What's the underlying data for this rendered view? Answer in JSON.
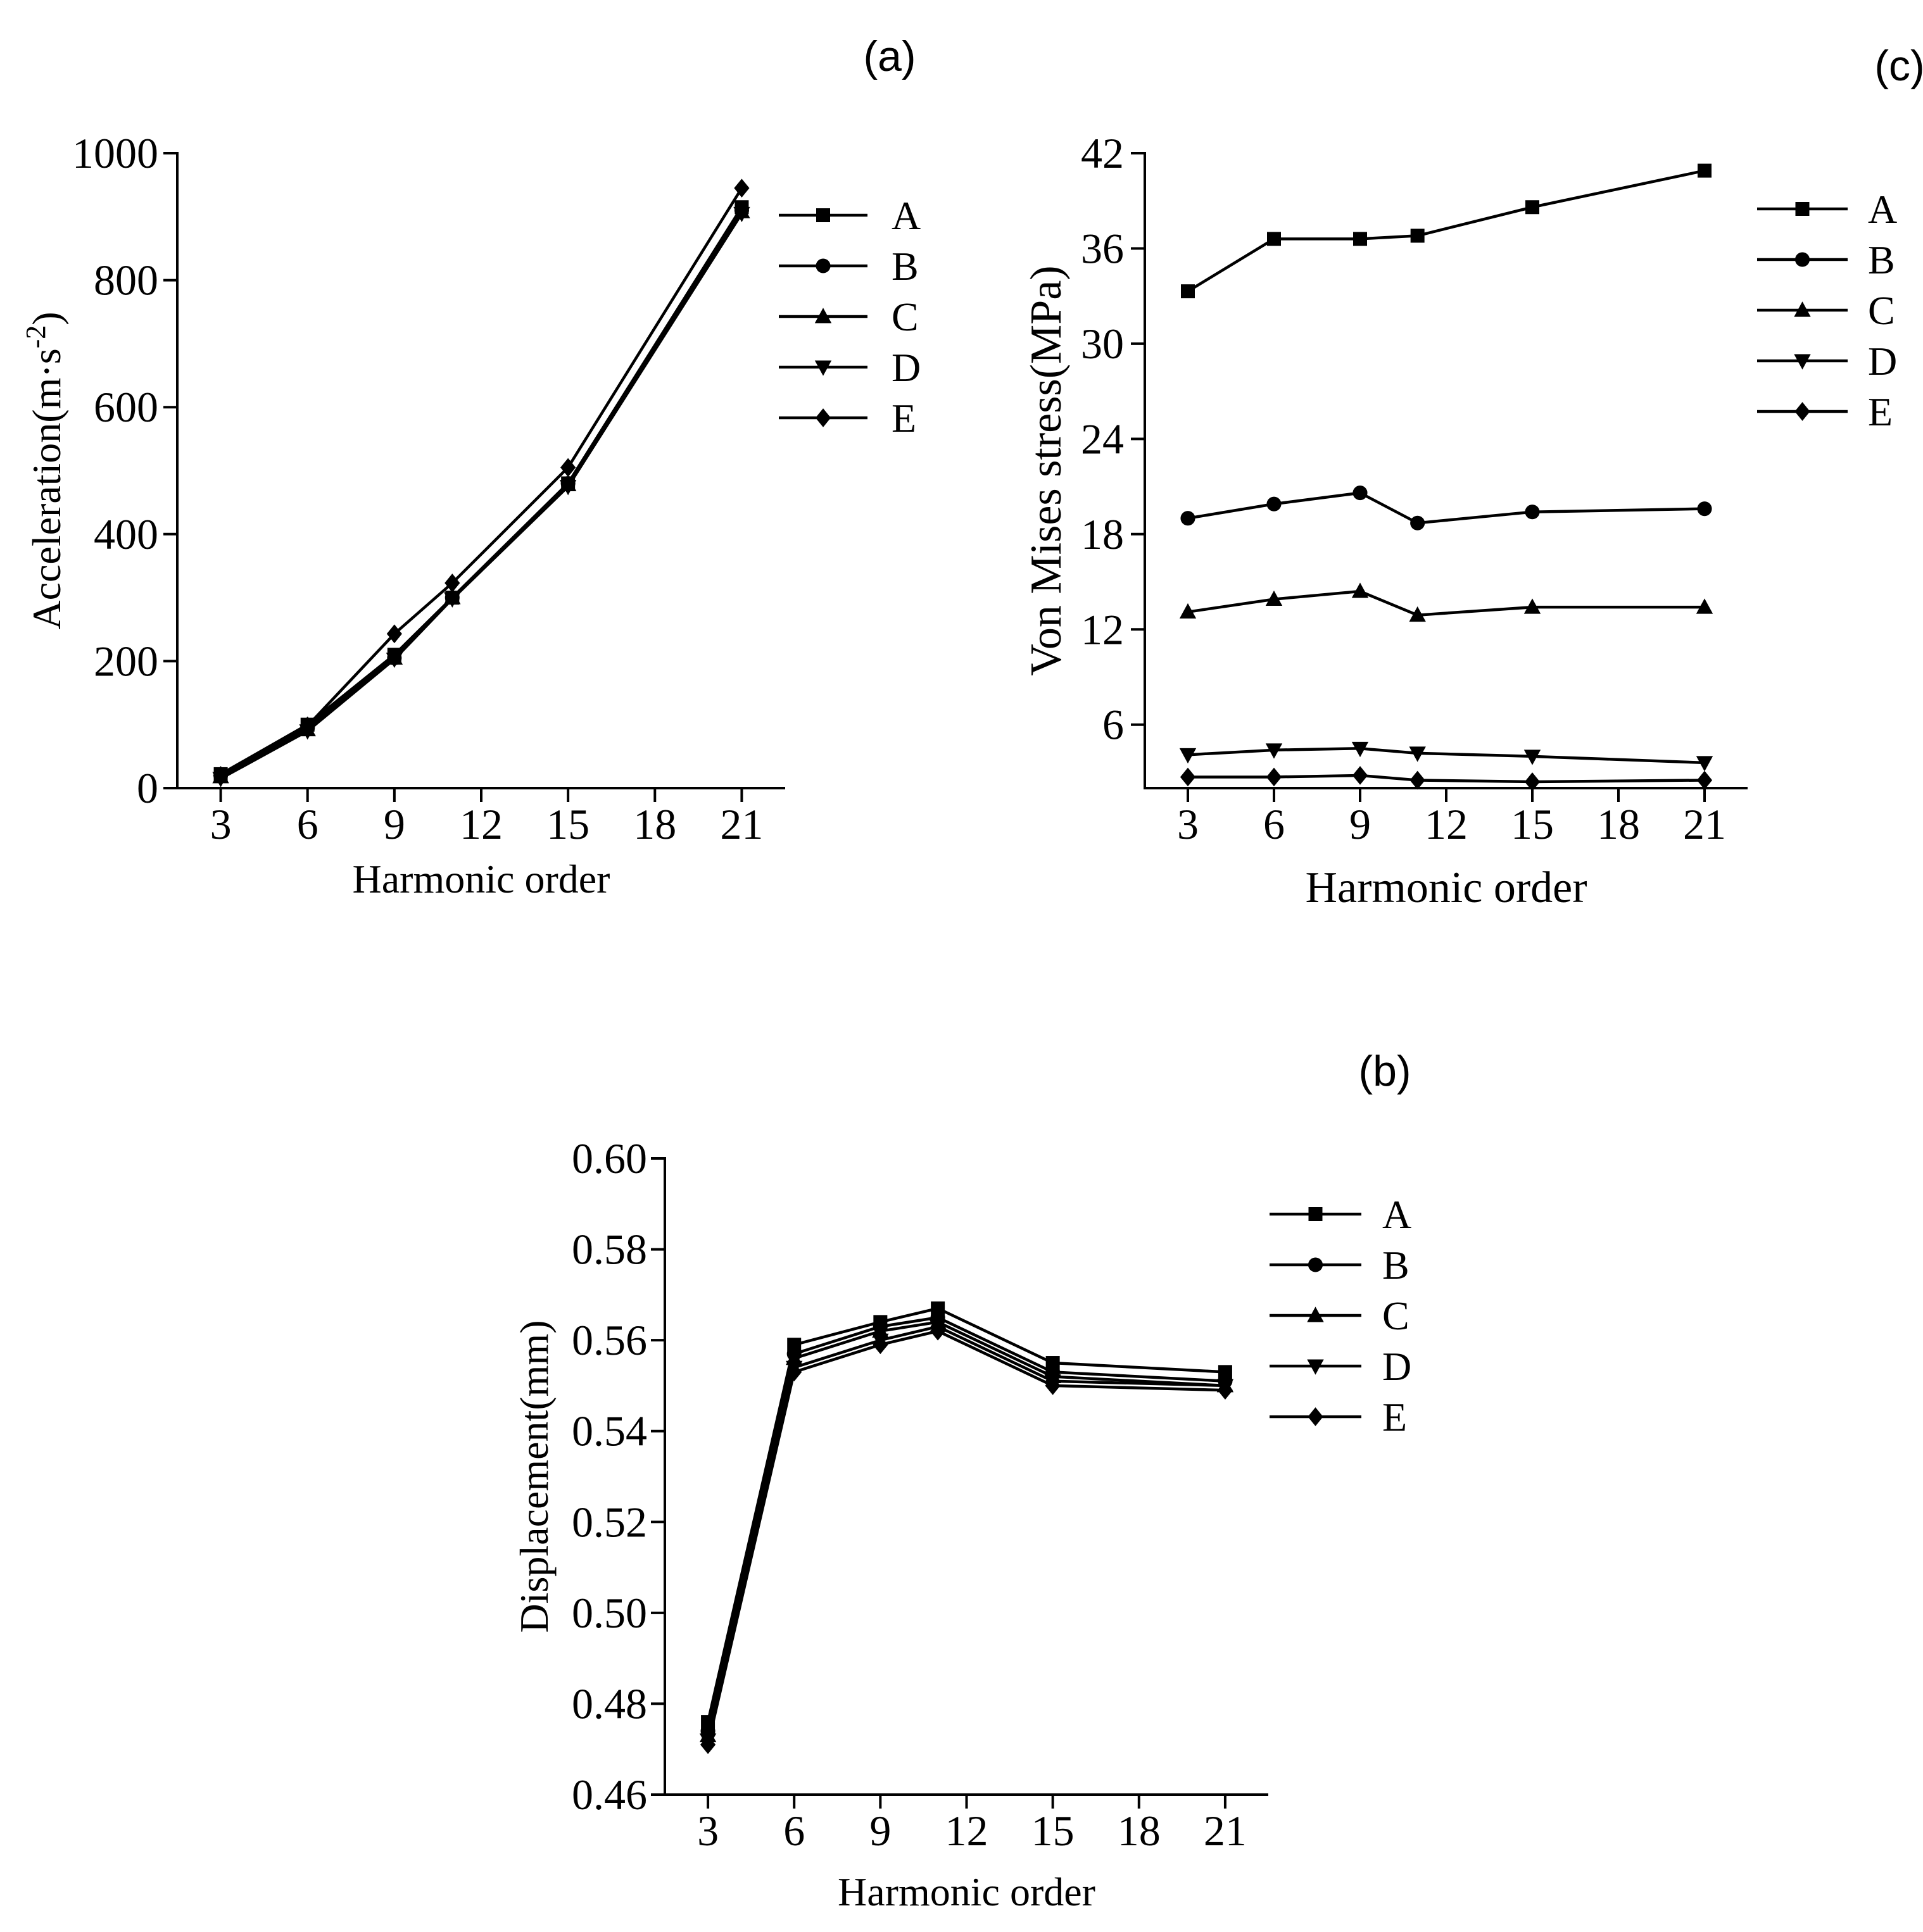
{
  "chart_data": [
    {
      "type": "line",
      "panel_label": "(a)",
      "title": "",
      "xlabel": "Harmonic order",
      "ylabel": "Acceleration(m·s",
      "ylabel_sup": "-2",
      "ylabel_close": ")",
      "xlim": [
        1.5,
        22.5
      ],
      "ylim": [
        0,
        1000
      ],
      "xticks": [
        3,
        6,
        9,
        12,
        15,
        18,
        21
      ],
      "yticks": [
        0,
        200,
        400,
        600,
        800,
        1000
      ],
      "grid": false,
      "legend": "top-right",
      "x": [
        3,
        6,
        9,
        11,
        15,
        21
      ],
      "series": [
        {
          "name": "A",
          "marker": "square",
          "values": [
            22,
            100,
            210,
            300,
            480,
            915
          ]
        },
        {
          "name": "B",
          "marker": "circle",
          "values": [
            20,
            95,
            205,
            300,
            480,
            910
          ]
        },
        {
          "name": "C",
          "marker": "triangle-up",
          "values": [
            18,
            92,
            205,
            300,
            478,
            908
          ]
        },
        {
          "name": "D",
          "marker": "triangle-down",
          "values": [
            15,
            90,
            203,
            298,
            475,
            905
          ]
        },
        {
          "name": "E",
          "marker": "diamond",
          "values": [
            20,
            98,
            243,
            323,
            505,
            945
          ]
        }
      ]
    },
    {
      "type": "line",
      "panel_label": "(c)",
      "title": "",
      "xlabel": "Harmonic order",
      "ylabel": "Von Mises stress(MPa)",
      "xlim": [
        1.5,
        22.5
      ],
      "ylim": [
        2,
        42
      ],
      "xticks": [
        3,
        6,
        9,
        12,
        15,
        18,
        21
      ],
      "yticks": [
        6,
        12,
        18,
        24,
        30,
        36,
        42
      ],
      "grid": false,
      "legend": "top-right",
      "x": [
        3,
        6,
        9,
        11,
        15,
        21
      ],
      "series": [
        {
          "name": "A",
          "marker": "square",
          "values": [
            33.3,
            36.6,
            36.6,
            36.8,
            38.6,
            40.9
          ]
        },
        {
          "name": "B",
          "marker": "circle",
          "values": [
            19.0,
            19.9,
            20.6,
            18.7,
            19.4,
            19.6
          ]
        },
        {
          "name": "C",
          "marker": "triangle-up",
          "values": [
            13.1,
            13.9,
            14.4,
            12.9,
            13.4,
            13.4
          ]
        },
        {
          "name": "D",
          "marker": "triangle-down",
          "values": [
            4.1,
            4.4,
            4.5,
            4.2,
            4.0,
            3.6
          ]
        },
        {
          "name": "E",
          "marker": "diamond",
          "values": [
            2.7,
            2.7,
            2.8,
            2.5,
            2.4,
            2.5
          ]
        }
      ]
    },
    {
      "type": "line",
      "panel_label": "(b)",
      "title": "",
      "xlabel": "Harmonic order",
      "ylabel": "Displacement(mm)",
      "xlim": [
        1.5,
        22.5
      ],
      "ylim": [
        0.46,
        0.6
      ],
      "xticks": [
        3,
        6,
        9,
        12,
        15,
        18,
        21
      ],
      "yticks": [
        0.46,
        0.48,
        0.5,
        0.52,
        0.54,
        0.56,
        0.58,
        0.6
      ],
      "ytick_labels": [
        "0.46",
        "0.48",
        "0.50",
        "0.52",
        "0.54",
        "0.56",
        "0.58",
        "0.60"
      ],
      "grid": false,
      "legend": "top-right",
      "x": [
        3,
        6,
        9,
        11,
        15,
        21
      ],
      "series": [
        {
          "name": "A",
          "marker": "square",
          "values": [
            0.476,
            0.559,
            0.564,
            0.567,
            0.555,
            0.553
          ]
        },
        {
          "name": "B",
          "marker": "circle",
          "values": [
            0.474,
            0.557,
            0.563,
            0.565,
            0.553,
            0.551
          ]
        },
        {
          "name": "C",
          "marker": "triangle-up",
          "values": [
            0.473,
            0.556,
            0.562,
            0.564,
            0.552,
            0.55
          ]
        },
        {
          "name": "D",
          "marker": "triangle-down",
          "values": [
            0.472,
            0.554,
            0.56,
            0.563,
            0.551,
            0.55
          ]
        },
        {
          "name": "E",
          "marker": "diamond",
          "values": [
            0.471,
            0.553,
            0.559,
            0.562,
            0.55,
            0.549
          ]
        }
      ]
    }
  ]
}
